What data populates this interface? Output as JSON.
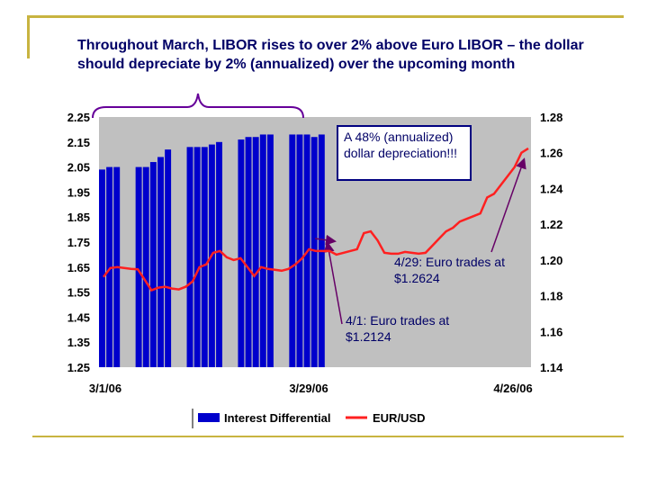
{
  "headline": "Throughout March, LIBOR rises to over  2% above Euro LIBOR – the dollar should depreciate by 2% (annualized) over the upcoming month",
  "annotations": {
    "box": "A 48% (annualized) dollar depreciation!!!",
    "apr29": "4/29: Euro trades at $1.2624",
    "apr1": "4/1: Euro trades at $1.2124"
  },
  "colors": {
    "bar": "#0000cc",
    "line": "#ff2020",
    "plot_bg": "#c0c0c0",
    "arrow": "#660066",
    "brace": "#660099",
    "rule": "#c8b440",
    "text": "#000066"
  },
  "chart_data": {
    "type": "bar-line combo",
    "x_ticks": [
      "3/1/06",
      "3/29/06",
      "4/26/06"
    ],
    "left_axis": {
      "min": 1.25,
      "max": 2.25,
      "ticks": [
        "2.25",
        "2.15",
        "2.05",
        "1.95",
        "1.85",
        "1.75",
        "1.65",
        "1.55",
        "1.45",
        "1.35",
        "1.25"
      ]
    },
    "right_axis": {
      "min": 1.14,
      "max": 1.28,
      "ticks": [
        "1.28",
        "1.26",
        "1.24",
        "1.22",
        "1.20",
        "1.18",
        "1.16",
        "1.14"
      ]
    },
    "series": [
      {
        "name": "Interest Differential",
        "type": "bar",
        "axis": "left",
        "values": [
          2.04,
          2.05,
          2.05,
          null,
          null,
          2.05,
          2.05,
          2.07,
          2.09,
          2.12,
          null,
          null,
          2.13,
          2.13,
          2.13,
          2.14,
          2.15,
          null,
          null,
          2.16,
          2.17,
          2.17,
          2.18,
          2.18,
          null,
          null,
          2.18,
          2.18,
          2.18,
          2.17,
          2.18
        ]
      },
      {
        "name": "EUR/USD",
        "type": "line",
        "axis": "right",
        "values": [
          1.1905,
          1.1955,
          1.196,
          1.1955,
          1.195,
          1.1948,
          1.189,
          1.183,
          1.1845,
          1.185,
          1.184,
          1.1835,
          1.185,
          1.188,
          1.196,
          1.1975,
          1.204,
          1.205,
          1.2015,
          1.2,
          1.201,
          1.196,
          1.191,
          1.196,
          1.195,
          1.1945,
          1.194,
          1.195,
          1.1975,
          1.201,
          1.206,
          1.205,
          1.205,
          1.205,
          1.203,
          1.204,
          1.205,
          1.206,
          1.215,
          1.216,
          1.211,
          1.204,
          1.2035,
          1.2035,
          1.2045,
          1.204,
          1.2035,
          1.204,
          1.208,
          1.212,
          1.216,
          1.218,
          1.2215,
          1.223,
          1.2245,
          1.226,
          1.235,
          1.237,
          1.242,
          1.247,
          1.252,
          1.26,
          1.2624
        ]
      }
    ],
    "legend": [
      "Interest Differential",
      "EUR/USD"
    ],
    "legend_position": "bottom"
  }
}
